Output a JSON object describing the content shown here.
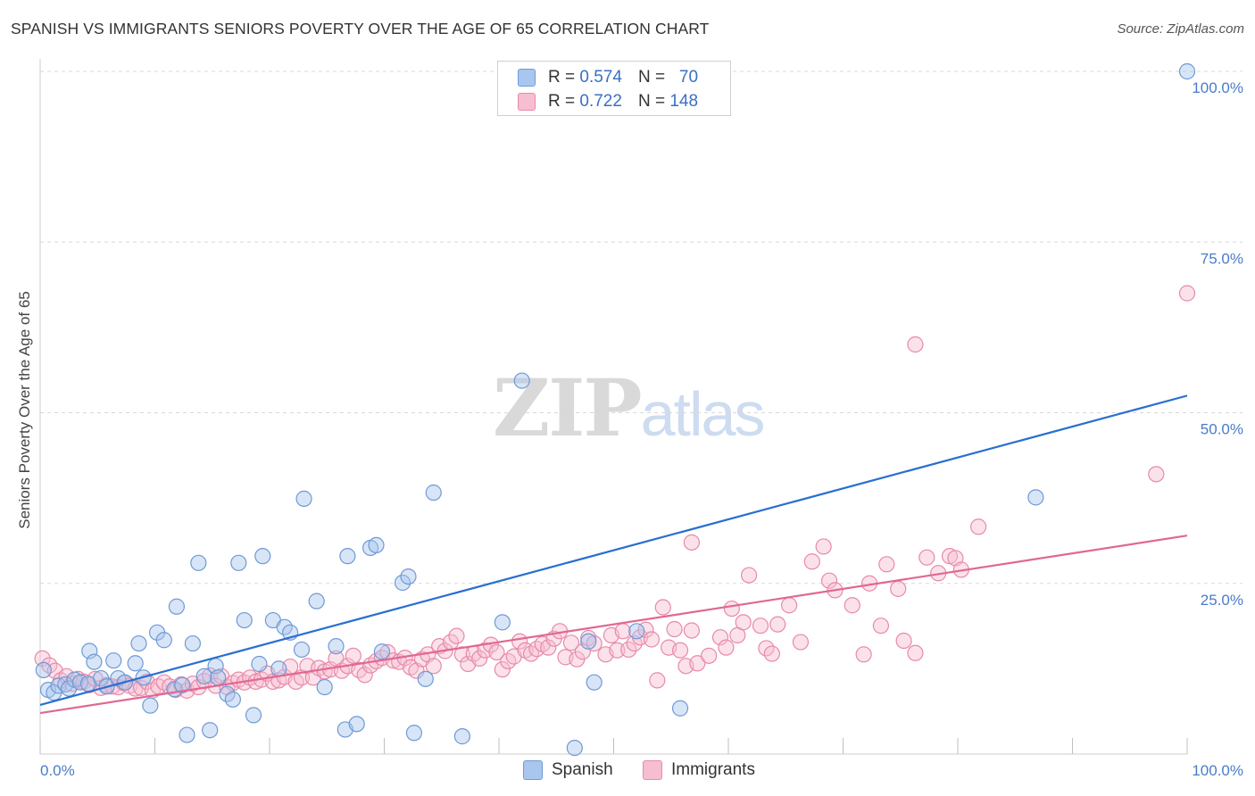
{
  "title": "SPANISH VS IMMIGRANTS SENIORS POVERTY OVER THE AGE OF 65 CORRELATION CHART",
  "source": "Source: ZipAtlas.com",
  "watermark": {
    "zip": "ZIP",
    "atlas": "atlas"
  },
  "legend": {
    "rows": [
      {
        "r_label": "R =",
        "r_value": "0.574",
        "n_label": "N =",
        "n_value": "70",
        "color": "#a9c6ee",
        "border": "#6e9ad6"
      },
      {
        "r_label": "R =",
        "r_value": "0.722",
        "n_label": "N =",
        "n_value": "148",
        "color": "#f7bed0",
        "border": "#e889a8"
      }
    ]
  },
  "bottom_legend": [
    {
      "label": "Spanish",
      "color": "#a9c6ee",
      "border": "#6e9ad6"
    },
    {
      "label": "Immigrants",
      "color": "#f7bed0",
      "border": "#e889a8"
    }
  ],
  "chart_data": {
    "type": "scatter",
    "title": "SPANISH VS IMMIGRANTS SENIORS POVERTY OVER THE AGE OF 65 CORRELATION CHART",
    "xlabel": "",
    "ylabel": "Seniors Poverty Over the Age of 65",
    "xlim": [
      0,
      100
    ],
    "ylim": [
      0,
      100
    ],
    "x_tick_labels": [
      "0.0%",
      "100.0%"
    ],
    "y_ticks": [
      25,
      50,
      75,
      100
    ],
    "y_tick_labels": [
      "25.0%",
      "50.0%",
      "75.0%",
      "100.0%"
    ],
    "grid": true,
    "legend_position": "top-center",
    "series": [
      {
        "name": "Spanish",
        "color": "#6e9ad6",
        "fill": "#a9c6ee",
        "line_color": "#2a6fd0",
        "trend": [
          [
            0,
            7.2
          ],
          [
            100,
            52.5
          ]
        ],
        "points": [
          [
            0.3,
            12.3
          ],
          [
            0.7,
            9.4
          ],
          [
            1.2,
            9.0
          ],
          [
            1.6,
            10.0
          ],
          [
            2.2,
            10.2
          ],
          [
            2.5,
            9.6
          ],
          [
            3.0,
            10.9
          ],
          [
            3.5,
            10.5
          ],
          [
            4.2,
            10.3
          ],
          [
            4.3,
            15.1
          ],
          [
            4.7,
            13.5
          ],
          [
            5.3,
            11.1
          ],
          [
            5.8,
            9.9
          ],
          [
            6.4,
            13.7
          ],
          [
            6.8,
            11.1
          ],
          [
            7.4,
            10.5
          ],
          [
            8.3,
            13.3
          ],
          [
            8.6,
            16.2
          ],
          [
            9.0,
            11.2
          ],
          [
            9.6,
            7.1
          ],
          [
            10.2,
            17.8
          ],
          [
            10.8,
            16.7
          ],
          [
            11.7,
            9.5
          ],
          [
            11.9,
            21.6
          ],
          [
            12.4,
            10.1
          ],
          [
            12.8,
            2.8
          ],
          [
            13.3,
            16.2
          ],
          [
            13.8,
            28.0
          ],
          [
            14.3,
            11.4
          ],
          [
            14.8,
            3.5
          ],
          [
            15.3,
            12.9
          ],
          [
            15.5,
            11.2
          ],
          [
            16.3,
            8.8
          ],
          [
            16.8,
            8.0
          ],
          [
            17.3,
            28.0
          ],
          [
            17.8,
            19.6
          ],
          [
            18.6,
            5.7
          ],
          [
            19.1,
            13.2
          ],
          [
            19.4,
            29.0
          ],
          [
            20.3,
            19.6
          ],
          [
            20.8,
            12.5
          ],
          [
            21.3,
            18.6
          ],
          [
            21.8,
            17.8
          ],
          [
            22.8,
            15.3
          ],
          [
            23.0,
            37.4
          ],
          [
            24.1,
            22.4
          ],
          [
            24.8,
            9.8
          ],
          [
            25.8,
            15.8
          ],
          [
            26.6,
            3.6
          ],
          [
            26.8,
            29.0
          ],
          [
            27.6,
            4.4
          ],
          [
            28.8,
            30.2
          ],
          [
            29.3,
            30.6
          ],
          [
            29.8,
            15.0
          ],
          [
            31.6,
            25.1
          ],
          [
            32.1,
            26.0
          ],
          [
            32.6,
            3.1
          ],
          [
            33.6,
            11.0
          ],
          [
            34.3,
            38.3
          ],
          [
            36.8,
            2.6
          ],
          [
            40.3,
            19.3
          ],
          [
            42.0,
            54.7
          ],
          [
            46.6,
            0.9
          ],
          [
            47.8,
            16.5
          ],
          [
            48.3,
            10.5
          ],
          [
            52.0,
            18.0
          ],
          [
            55.8,
            6.7
          ],
          [
            86.8,
            37.6
          ],
          [
            100.0,
            100.0
          ]
        ]
      },
      {
        "name": "Immigrants",
        "color": "#e889a8",
        "fill": "#f7bed0",
        "line_color": "#e06892",
        "trend": [
          [
            0,
            6.0
          ],
          [
            100,
            32.0
          ]
        ],
        "points": [
          [
            0.2,
            14.0
          ],
          [
            0.8,
            13.0
          ],
          [
            1.3,
            12.2
          ],
          [
            1.8,
            10.8
          ],
          [
            2.3,
            11.4
          ],
          [
            2.8,
            10.3
          ],
          [
            3.3,
            11.0
          ],
          [
            3.8,
            10.6
          ],
          [
            4.3,
            10.1
          ],
          [
            4.8,
            11.0
          ],
          [
            5.3,
            9.7
          ],
          [
            5.8,
            10.1
          ],
          [
            6.3,
            9.9
          ],
          [
            6.8,
            9.8
          ],
          [
            7.3,
            10.4
          ],
          [
            7.8,
            10.0
          ],
          [
            8.3,
            9.6
          ],
          [
            8.8,
            9.7
          ],
          [
            9.3,
            10.6
          ],
          [
            9.8,
            9.3
          ],
          [
            10.3,
            9.9
          ],
          [
            10.8,
            10.5
          ],
          [
            11.3,
            9.9
          ],
          [
            11.8,
            9.4
          ],
          [
            12.3,
            10.2
          ],
          [
            12.8,
            9.3
          ],
          [
            13.3,
            10.3
          ],
          [
            13.8,
            9.8
          ],
          [
            14.3,
            10.7
          ],
          [
            14.8,
            11.5
          ],
          [
            15.3,
            10.0
          ],
          [
            15.8,
            11.4
          ],
          [
            16.3,
            9.8
          ],
          [
            16.8,
            10.4
          ],
          [
            17.3,
            10.9
          ],
          [
            17.8,
            10.5
          ],
          [
            18.3,
            11.2
          ],
          [
            18.8,
            10.6
          ],
          [
            19.3,
            10.9
          ],
          [
            19.8,
            11.8
          ],
          [
            20.3,
            10.6
          ],
          [
            20.8,
            10.8
          ],
          [
            21.3,
            11.3
          ],
          [
            21.8,
            12.8
          ],
          [
            22.3,
            10.6
          ],
          [
            22.8,
            11.2
          ],
          [
            23.3,
            12.9
          ],
          [
            23.8,
            11.2
          ],
          [
            24.3,
            12.6
          ],
          [
            24.8,
            12.1
          ],
          [
            25.3,
            12.4
          ],
          [
            25.8,
            14.0
          ],
          [
            26.3,
            12.2
          ],
          [
            26.8,
            12.9
          ],
          [
            27.3,
            14.4
          ],
          [
            27.8,
            12.3
          ],
          [
            28.3,
            11.6
          ],
          [
            28.8,
            13.0
          ],
          [
            29.3,
            13.6
          ],
          [
            29.8,
            14.1
          ],
          [
            30.3,
            14.9
          ],
          [
            30.8,
            13.7
          ],
          [
            31.3,
            13.5
          ],
          [
            31.8,
            14.1
          ],
          [
            32.3,
            12.7
          ],
          [
            32.8,
            12.2
          ],
          [
            33.3,
            13.9
          ],
          [
            33.8,
            14.6
          ],
          [
            34.3,
            12.9
          ],
          [
            34.8,
            15.8
          ],
          [
            35.3,
            15.1
          ],
          [
            35.8,
            16.4
          ],
          [
            36.3,
            17.3
          ],
          [
            36.8,
            14.6
          ],
          [
            37.3,
            13.2
          ],
          [
            37.8,
            14.7
          ],
          [
            38.3,
            14.0
          ],
          [
            38.8,
            15.2
          ],
          [
            39.3,
            16.0
          ],
          [
            39.8,
            14.9
          ],
          [
            40.3,
            12.4
          ],
          [
            40.8,
            13.6
          ],
          [
            41.3,
            14.3
          ],
          [
            41.8,
            16.5
          ],
          [
            42.3,
            15.2
          ],
          [
            42.8,
            14.7
          ],
          [
            43.3,
            15.4
          ],
          [
            43.8,
            16.1
          ],
          [
            44.3,
            15.6
          ],
          [
            44.8,
            16.9
          ],
          [
            45.3,
            18.0
          ],
          [
            45.8,
            14.2
          ],
          [
            46.3,
            16.3
          ],
          [
            46.8,
            13.9
          ],
          [
            47.3,
            15.0
          ],
          [
            47.8,
            17.0
          ],
          [
            48.3,
            16.2
          ],
          [
            49.3,
            14.6
          ],
          [
            49.8,
            17.4
          ],
          [
            50.3,
            15.2
          ],
          [
            50.8,
            18.0
          ],
          [
            51.3,
            15.3
          ],
          [
            51.8,
            16.2
          ],
          [
            52.3,
            17.1
          ],
          [
            52.8,
            18.2
          ],
          [
            53.3,
            16.8
          ],
          [
            53.8,
            10.8
          ],
          [
            54.3,
            21.5
          ],
          [
            54.8,
            15.6
          ],
          [
            55.3,
            18.3
          ],
          [
            55.8,
            15.2
          ],
          [
            56.3,
            12.9
          ],
          [
            56.8,
            18.1
          ],
          [
            57.3,
            13.3
          ],
          [
            58.3,
            14.4
          ],
          [
            59.3,
            17.1
          ],
          [
            59.8,
            15.6
          ],
          [
            60.3,
            21.3
          ],
          [
            60.8,
            17.4
          ],
          [
            61.3,
            19.3
          ],
          [
            61.8,
            26.2
          ],
          [
            62.8,
            18.8
          ],
          [
            63.3,
            15.5
          ],
          [
            63.8,
            14.7
          ],
          [
            64.3,
            19.0
          ],
          [
            65.3,
            21.8
          ],
          [
            66.3,
            16.4
          ],
          [
            67.3,
            28.2
          ],
          [
            68.3,
            30.4
          ],
          [
            68.8,
            25.4
          ],
          [
            69.3,
            24.0
          ],
          [
            70.8,
            21.8
          ],
          [
            71.8,
            14.6
          ],
          [
            72.3,
            25.0
          ],
          [
            73.3,
            18.8
          ],
          [
            73.8,
            27.8
          ],
          [
            74.8,
            24.2
          ],
          [
            75.3,
            16.6
          ],
          [
            76.3,
            14.8
          ],
          [
            77.3,
            28.8
          ],
          [
            78.3,
            26.5
          ],
          [
            79.3,
            29.0
          ],
          [
            79.8,
            28.7
          ],
          [
            80.3,
            27.0
          ],
          [
            81.8,
            33.3
          ],
          [
            97.3,
            41.0
          ],
          [
            56.8,
            31.0
          ],
          [
            76.3,
            60.0
          ],
          [
            100.0,
            67.5
          ]
        ]
      }
    ]
  }
}
